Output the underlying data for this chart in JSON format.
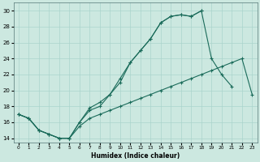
{
  "xlabel": "Humidex (Indice chaleur)",
  "bg_color": "#cce8e0",
  "line_color": "#1a6b5a",
  "grid_color": "#aad4cc",
  "xlim": [
    -0.5,
    23.5
  ],
  "ylim": [
    13.5,
    31
  ],
  "xticks": [
    0,
    1,
    2,
    3,
    4,
    5,
    6,
    7,
    8,
    9,
    10,
    11,
    12,
    13,
    14,
    15,
    16,
    17,
    18,
    19,
    20,
    21,
    22,
    23
  ],
  "yticks": [
    14,
    16,
    18,
    20,
    22,
    24,
    26,
    28,
    30
  ],
  "line1_x": [
    0,
    1,
    2,
    3,
    4,
    5,
    6,
    7,
    8,
    9,
    10,
    11,
    12,
    13,
    14,
    15,
    16,
    17,
    18
  ],
  "line1_y": [
    17,
    16.5,
    15,
    14.5,
    14,
    14,
    16,
    17.8,
    18.5,
    19.5,
    21,
    23.5,
    25,
    26.5,
    28.5,
    29.3,
    29.5,
    29.3,
    30
  ],
  "line2_x": [
    0,
    1,
    2,
    3,
    4,
    5,
    6,
    7,
    8,
    9,
    10,
    11,
    12,
    13,
    14,
    15,
    16,
    17,
    18,
    19,
    20,
    21
  ],
  "line2_y": [
    17,
    16.5,
    15,
    14.5,
    14,
    14,
    16,
    17.5,
    18,
    19.5,
    21.5,
    23.5,
    25,
    26.5,
    28.5,
    29.3,
    29.5,
    29.3,
    30,
    24,
    22,
    20.5
  ],
  "line3_x": [
    0,
    1,
    2,
    3,
    4,
    5,
    6,
    7,
    8,
    9,
    10,
    11,
    12,
    13,
    14,
    15,
    16,
    17,
    18,
    19,
    20,
    21,
    22,
    23
  ],
  "line3_y": [
    17,
    16.5,
    15,
    14.5,
    14,
    14,
    15.5,
    16.5,
    17,
    17.5,
    18,
    18.5,
    19,
    19.5,
    20,
    20.5,
    21,
    21.5,
    22,
    22.5,
    23,
    23.5,
    24,
    19.5
  ]
}
